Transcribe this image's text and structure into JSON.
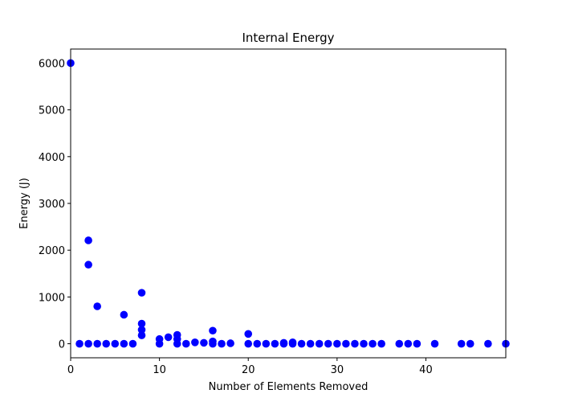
{
  "chart_data": {
    "type": "scatter",
    "title": "Internal Energy",
    "xlabel": "Number of Elements Removed",
    "ylabel": "Energy (J)",
    "xlim": [
      0,
      49
    ],
    "ylim": [
      -300,
      6300
    ],
    "xticks": [
      0,
      10,
      20,
      30,
      40
    ],
    "yticks": [
      0,
      1000,
      2000,
      3000,
      4000,
      5000,
      6000
    ],
    "grid": false,
    "marker_color": "#0000ff",
    "series": [
      {
        "points": [
          [
            0,
            6000
          ],
          [
            1,
            0
          ],
          [
            2,
            2210
          ],
          [
            2,
            1690
          ],
          [
            2,
            0
          ],
          [
            3,
            800
          ],
          [
            3,
            0
          ],
          [
            4,
            0
          ],
          [
            5,
            0
          ],
          [
            6,
            620
          ],
          [
            6,
            0
          ],
          [
            7,
            0
          ],
          [
            8,
            1090
          ],
          [
            8,
            430
          ],
          [
            8,
            300
          ],
          [
            8,
            180
          ],
          [
            10,
            100
          ],
          [
            10,
            0
          ],
          [
            11,
            140
          ],
          [
            12,
            190
          ],
          [
            12,
            100
          ],
          [
            12,
            0
          ],
          [
            13,
            0
          ],
          [
            14,
            30
          ],
          [
            15,
            20
          ],
          [
            16,
            280
          ],
          [
            16,
            50
          ],
          [
            16,
            0
          ],
          [
            17,
            0
          ],
          [
            18,
            10
          ],
          [
            20,
            210
          ],
          [
            20,
            0
          ],
          [
            21,
            0
          ],
          [
            22,
            0
          ],
          [
            23,
            0
          ],
          [
            24,
            20
          ],
          [
            24,
            0
          ],
          [
            25,
            30
          ],
          [
            25,
            0
          ],
          [
            26,
            0
          ],
          [
            27,
            0
          ],
          [
            28,
            0
          ],
          [
            29,
            0
          ],
          [
            30,
            0
          ],
          [
            31,
            0
          ],
          [
            32,
            0
          ],
          [
            33,
            0
          ],
          [
            34,
            0
          ],
          [
            35,
            0
          ],
          [
            37,
            0
          ],
          [
            38,
            0
          ],
          [
            39,
            0
          ],
          [
            41,
            0
          ],
          [
            44,
            0
          ],
          [
            45,
            0
          ],
          [
            47,
            0
          ],
          [
            49,
            0
          ]
        ]
      }
    ]
  }
}
